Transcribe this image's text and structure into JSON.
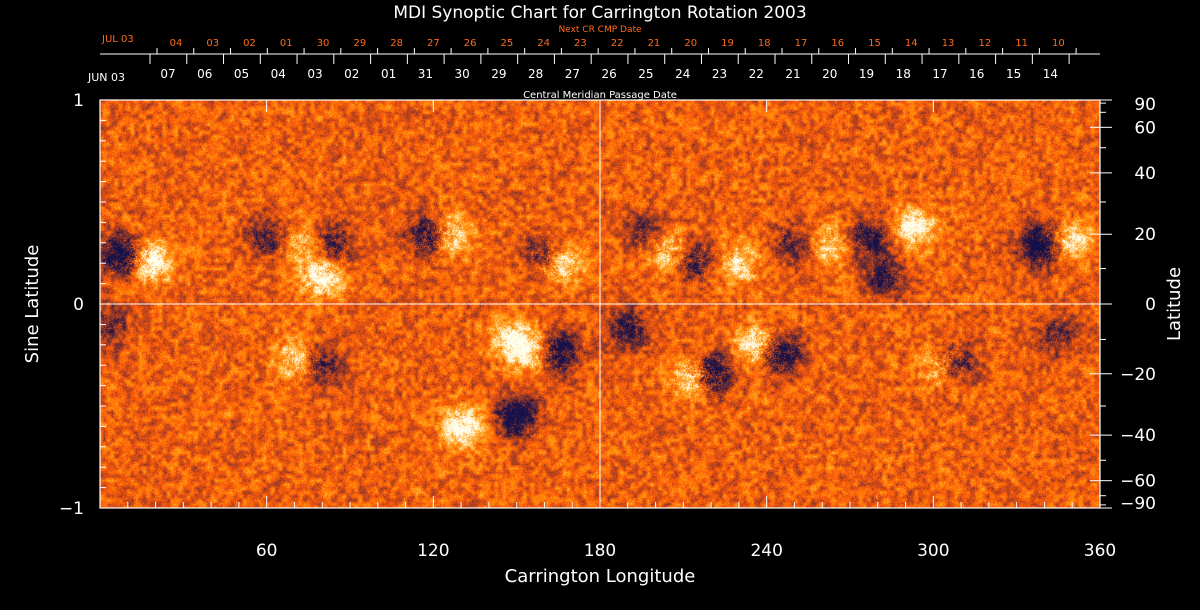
{
  "chart_data": {
    "type": "heatmap",
    "title": "MDI Synoptic Chart for Carrington Rotation 2003",
    "xlabel": "Carrington Longitude",
    "ylabel_left": "Sine Latitude",
    "ylabel_right": "Latitude",
    "xlim": [
      0,
      360
    ],
    "ylim_sine": [
      -1,
      1
    ],
    "x_ticks": [
      "60",
      "120",
      "180",
      "240",
      "300",
      "360"
    ],
    "x_tick_values": [
      60,
      120,
      180,
      240,
      300,
      360
    ],
    "y_left_ticks": [
      "1",
      "0",
      "−1"
    ],
    "y_left_tick_values": [
      1,
      0,
      -1
    ],
    "y_right_ticks": [
      "90",
      "60",
      "40",
      "20",
      "0",
      "−20",
      "−40",
      "−60",
      "−90"
    ],
    "y_right_tick_values": [
      90,
      60,
      40,
      20,
      0,
      -20,
      -40,
      -60,
      -90
    ],
    "reference_lines": {
      "longitude": 180,
      "sine_latitude": 0
    },
    "cmp_axis": {
      "label": "Central Meridian Passage Date",
      "start_label": "JUN 03",
      "dates": [
        "07",
        "06",
        "05",
        "04",
        "03",
        "02",
        "01",
        "31",
        "30",
        "29",
        "28",
        "27",
        "26",
        "25",
        "24",
        "23",
        "22",
        "21",
        "20",
        "19",
        "18",
        "17",
        "16",
        "15",
        "14"
      ]
    },
    "next_cr_axis": {
      "label": "Next CR CMP Date",
      "start_label": "JUL 03",
      "dates": [
        "04",
        "03",
        "02",
        "01",
        "30",
        "29",
        "28",
        "27",
        "26",
        "25",
        "24",
        "23",
        "22",
        "21",
        "20",
        "19",
        "18",
        "17",
        "16",
        "15",
        "14",
        "13",
        "12",
        "11",
        "10"
      ]
    },
    "colors": {
      "background": "#000000",
      "field_neutral": "#ff5a0a",
      "positive_polarity": "#fffbe0",
      "negative_polarity": "#14104a",
      "axis": "#ffffff",
      "next_cr_text": "#ff6a1a"
    },
    "active_regions": [
      {
        "lon": 8,
        "sinlat": 0.24,
        "polarity": "negative",
        "strength": 1.0
      },
      {
        "lon": 18,
        "sinlat": 0.21,
        "polarity": "positive",
        "strength": 0.9
      },
      {
        "lon": 60,
        "sinlat": 0.33,
        "polarity": "negative",
        "strength": 0.6
      },
      {
        "lon": 72,
        "sinlat": 0.3,
        "polarity": "positive",
        "strength": 0.5
      },
      {
        "lon": 84,
        "sinlat": 0.3,
        "polarity": "negative",
        "strength": 0.6
      },
      {
        "lon": 80,
        "sinlat": 0.13,
        "polarity": "positive",
        "strength": 0.8
      },
      {
        "lon": 118,
        "sinlat": 0.34,
        "polarity": "negative",
        "strength": 0.8
      },
      {
        "lon": 126,
        "sinlat": 0.34,
        "polarity": "positive",
        "strength": 0.7
      },
      {
        "lon": 160,
        "sinlat": 0.24,
        "polarity": "negative",
        "strength": 0.6
      },
      {
        "lon": 166,
        "sinlat": 0.2,
        "polarity": "positive",
        "strength": 0.7
      },
      {
        "lon": 196,
        "sinlat": 0.36,
        "polarity": "negative",
        "strength": 0.5
      },
      {
        "lon": 204,
        "sinlat": 0.26,
        "polarity": "positive",
        "strength": 0.6
      },
      {
        "lon": 214,
        "sinlat": 0.21,
        "polarity": "negative",
        "strength": 0.6
      },
      {
        "lon": 230,
        "sinlat": 0.2,
        "polarity": "positive",
        "strength": 0.6
      },
      {
        "lon": 250,
        "sinlat": 0.3,
        "polarity": "negative",
        "strength": 0.5
      },
      {
        "lon": 262,
        "sinlat": 0.29,
        "polarity": "positive",
        "strength": 0.5
      },
      {
        "lon": 277,
        "sinlat": 0.32,
        "polarity": "negative",
        "strength": 0.7
      },
      {
        "lon": 293,
        "sinlat": 0.38,
        "polarity": "positive",
        "strength": 0.8
      },
      {
        "lon": 282,
        "sinlat": 0.14,
        "polarity": "negative",
        "strength": 0.6
      },
      {
        "lon": 338,
        "sinlat": 0.29,
        "polarity": "negative",
        "strength": 1.0
      },
      {
        "lon": 350,
        "sinlat": 0.31,
        "polarity": "positive",
        "strength": 0.6
      },
      {
        "lon": 3,
        "sinlat": -0.1,
        "polarity": "negative",
        "strength": 0.5
      },
      {
        "lon": 80,
        "sinlat": -0.3,
        "polarity": "negative",
        "strength": 0.6
      },
      {
        "lon": 70,
        "sinlat": -0.27,
        "polarity": "positive",
        "strength": 0.6
      },
      {
        "lon": 148,
        "sinlat": -0.18,
        "polarity": "positive",
        "strength": 0.7
      },
      {
        "lon": 165,
        "sinlat": -0.23,
        "polarity": "negative",
        "strength": 0.9
      },
      {
        "lon": 155,
        "sinlat": -0.23,
        "polarity": "positive",
        "strength": 0.6
      },
      {
        "lon": 130,
        "sinlat": -0.6,
        "polarity": "positive",
        "strength": 0.9
      },
      {
        "lon": 150,
        "sinlat": -0.55,
        "polarity": "negative",
        "strength": 1.0
      },
      {
        "lon": 190,
        "sinlat": -0.12,
        "polarity": "negative",
        "strength": 0.7
      },
      {
        "lon": 220,
        "sinlat": -0.34,
        "polarity": "negative",
        "strength": 1.0
      },
      {
        "lon": 213,
        "sinlat": -0.36,
        "polarity": "positive",
        "strength": 0.8
      },
      {
        "lon": 245,
        "sinlat": -0.24,
        "polarity": "negative",
        "strength": 0.9
      },
      {
        "lon": 236,
        "sinlat": -0.2,
        "polarity": "positive",
        "strength": 0.8
      },
      {
        "lon": 308,
        "sinlat": -0.28,
        "polarity": "negative",
        "strength": 0.6
      },
      {
        "lon": 302,
        "sinlat": -0.3,
        "polarity": "positive",
        "strength": 0.5
      },
      {
        "lon": 345,
        "sinlat": -0.15,
        "polarity": "negative",
        "strength": 0.5
      }
    ]
  }
}
